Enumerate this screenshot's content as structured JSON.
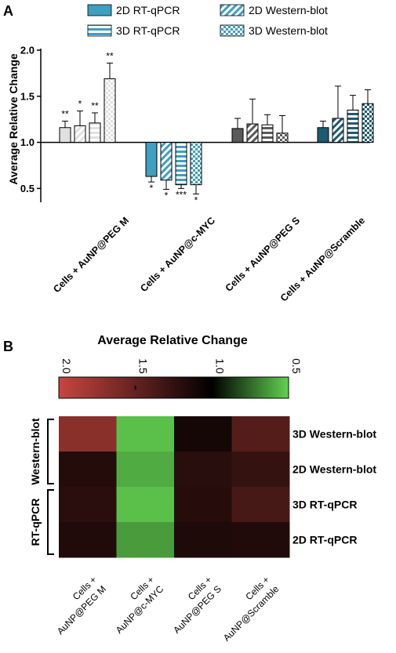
{
  "panel_a": {
    "label": "A"
  },
  "panel_b": {
    "label": "B"
  },
  "chart_data": [
    {
      "type": "bar",
      "ylabel": "Average Relative Change",
      "ylim": [
        0.35,
        2.0
      ],
      "yticks": [
        "0.5",
        "1.0",
        "1.5",
        "2.0"
      ],
      "baseline": 1.0,
      "categories": [
        "Cells + AuNP@PEG M",
        "Cells + AuNP@c-MYC",
        "Cells + AuNP@PEG S",
        "Cells + AuNP@Scramble"
      ],
      "legend_position": "top",
      "series": [
        {
          "name": "2D RT-qPCR",
          "pattern": "solid",
          "values": [
            1.16,
            0.63,
            1.15,
            1.16
          ],
          "errors": [
            0.07,
            0.06,
            0.11,
            0.07
          ],
          "significance": [
            "**",
            "*",
            "",
            ""
          ]
        },
        {
          "name": "2D Western-blot",
          "pattern": "diagonal",
          "values": [
            1.18,
            0.59,
            1.2,
            1.26
          ],
          "errors": [
            0.16,
            0.1,
            0.27,
            0.35
          ],
          "significance": [
            "*",
            "*",
            "",
            ""
          ]
        },
        {
          "name": "3D RT-qPCR",
          "pattern": "horizontal",
          "values": [
            1.21,
            0.54,
            1.19,
            1.35
          ],
          "errors": [
            0.11,
            0.04,
            0.11,
            0.16
          ],
          "significance": [
            "**",
            "***",
            "",
            ""
          ]
        },
        {
          "name": "3D Western-blot",
          "pattern": "checker",
          "values": [
            1.69,
            0.54,
            1.1,
            1.42
          ],
          "errors": [
            0.17,
            0.1,
            0.19,
            0.15
          ],
          "significance": [
            "**",
            "*",
            "",
            ""
          ]
        }
      ],
      "group_colors": [
        "#e0e0e0",
        "#3f9fbf",
        "#5a5a5a",
        "#1e5a72"
      ]
    },
    {
      "type": "heatmap",
      "title": "Average Relative Change",
      "colorbar_ticks": [
        "2.0",
        "1.5",
        "1.0",
        "0.5"
      ],
      "colorbar_range": [
        2.0,
        0.5
      ],
      "columns": [
        "Cells + AuNP@PEG M",
        "Cells + AuNP@c-MYC",
        "Cells + AuNP@PEG S",
        "Cells + AuNP@Scramble"
      ],
      "rows": [
        "3D Western-blot",
        "2D Western-blot",
        "3D RT-qPCR",
        "2D RT-qPCR"
      ],
      "row_groups": [
        {
          "label": "Western-blot",
          "rows": [
            "3D Western-blot",
            "2D Western-blot"
          ]
        },
        {
          "label": "RT-qPCR",
          "rows": [
            "3D RT-qPCR",
            "2D RT-qPCR"
          ]
        }
      ],
      "values": [
        [
          1.69,
          0.54,
          1.1,
          1.42
        ],
        [
          1.18,
          0.59,
          1.2,
          1.26
        ],
        [
          1.21,
          0.54,
          1.19,
          1.35
        ],
        [
          1.16,
          0.63,
          1.15,
          1.16
        ]
      ],
      "colors": {
        "high": "#c8453f",
        "mid": "#000000",
        "low": "#62d150"
      }
    }
  ]
}
